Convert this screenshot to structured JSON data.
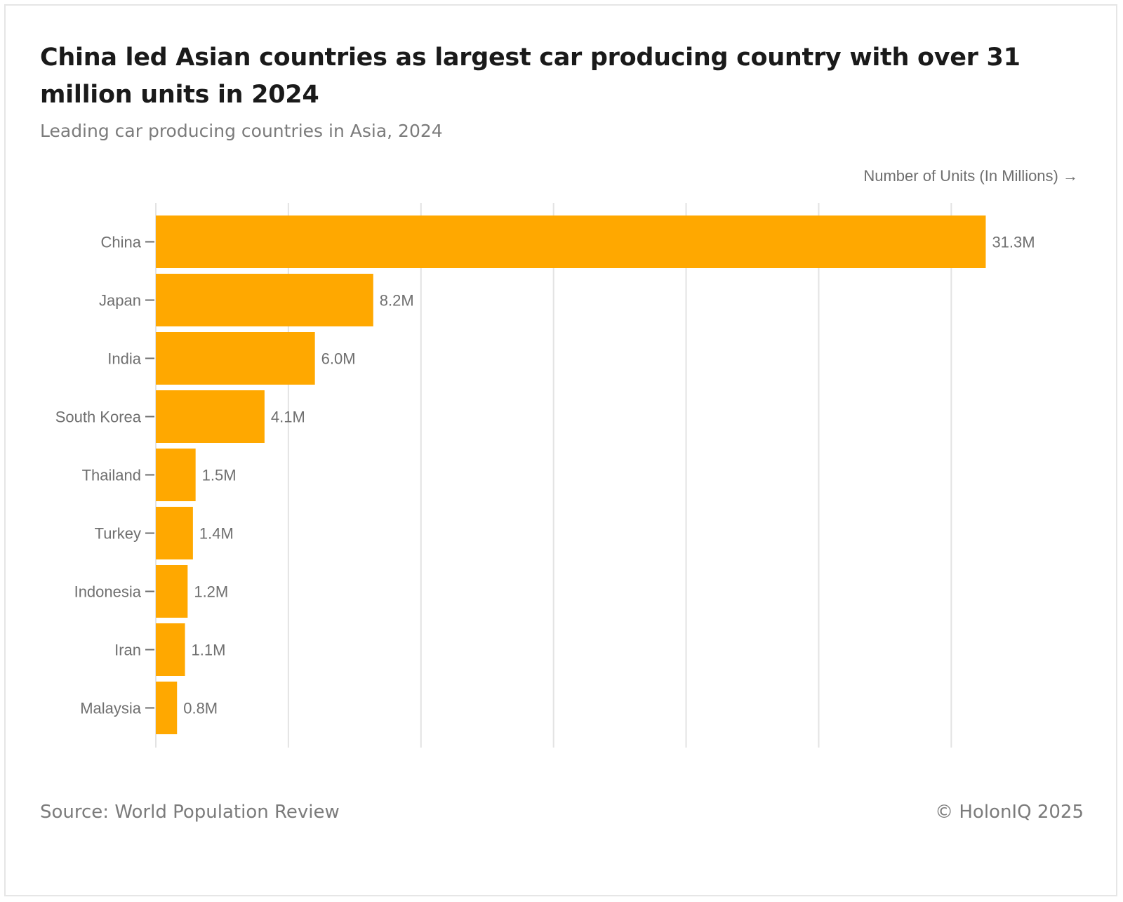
{
  "title": "China led Asian countries as largest car producing country with over 31 million units in 2024",
  "subtitle": "Leading car producing countries in Asia, 2024",
  "footer": {
    "source": "Source: World Population Review",
    "copyright": "© HolonIQ 2025"
  },
  "colors": {
    "bar": "#FFA800",
    "grid": "#e3e3e3",
    "text_muted": "#6f6f6f"
  },
  "chart_data": {
    "type": "bar",
    "orientation": "horizontal",
    "xlabel": "Number of Units (In Millions) →",
    "ylabel": "",
    "xlim": [
      0,
      33.3
    ],
    "grid": true,
    "categories": [
      "China",
      "Japan",
      "India",
      "South Korea",
      "Thailand",
      "Turkey",
      "Indonesia",
      "Iran",
      "Malaysia"
    ],
    "values": [
      31.3,
      8.2,
      6.0,
      4.1,
      1.5,
      1.4,
      1.2,
      1.1,
      0.8
    ],
    "value_labels": [
      "31.3M",
      "8.2M",
      "6.0M",
      "4.1M",
      "1.5M",
      "1.4M",
      "1.2M",
      "1.1M",
      "0.8M"
    ]
  }
}
